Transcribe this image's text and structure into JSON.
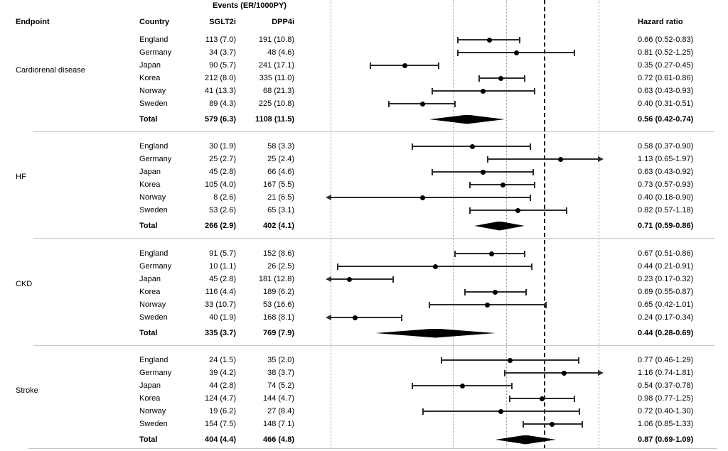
{
  "header": {
    "events_title": "Events (ER/1000PY)",
    "endpoint": "Endpoint",
    "country": "Country",
    "sglt2i": "SGLT2i",
    "dpp4i": "DPP4i",
    "hazard_ratio": "Hazard ratio"
  },
  "colors": {
    "text": "#000000",
    "marker": "#000000",
    "ci_line": "#2b2b2b",
    "gridline": "#9c9c9c",
    "refline": "#1c1c1c",
    "separator": "#c7c7c7",
    "background": "#ffffff"
  },
  "chart_data": {
    "type": "forest",
    "x_scale": "log",
    "ref_line": 1.0,
    "gridlines": [
      0.2,
      0.5,
      0.75,
      1.5
    ],
    "x_clip": [
      0.2,
      1.5
    ],
    "legend_position": "none",
    "sections": [
      {
        "endpoint": "Cardiorenal disease",
        "rows": [
          {
            "country": "England",
            "sglt2i": "113 (7.0)",
            "dpp4i": "191 (10.8)",
            "hr": 0.66,
            "lo": 0.52,
            "hi": 0.83,
            "label": "0.66 (0.52-0.83)"
          },
          {
            "country": "Germany",
            "sglt2i": "34 (3.7)",
            "dpp4i": "48 (4.6)",
            "hr": 0.81,
            "lo": 0.52,
            "hi": 1.25,
            "label": "0.81 (0.52-1.25)"
          },
          {
            "country": "Japan",
            "sglt2i": "90 (5.7)",
            "dpp4i": "241 (17.1)",
            "hr": 0.35,
            "lo": 0.27,
            "hi": 0.45,
            "label": "0.35 (0.27-0.45)"
          },
          {
            "country": "Korea",
            "sglt2i": "212 (8.0)",
            "dpp4i": "335 (11.0)",
            "hr": 0.72,
            "lo": 0.61,
            "hi": 0.86,
            "label": "0.72 (0.61-0.86)"
          },
          {
            "country": "Norway",
            "sglt2i": "41 (13.3)",
            "dpp4i": "68 (21.3)",
            "hr": 0.63,
            "lo": 0.43,
            "hi": 0.93,
            "label": "0.63 (0.43-0.93)"
          },
          {
            "country": "Sweden",
            "sglt2i": "89 (4.3)",
            "dpp4i": "225 (10.8)",
            "hr": 0.4,
            "lo": 0.31,
            "hi": 0.51,
            "label": "0.40 (0.31-0.51)"
          }
        ],
        "total": {
          "country": "Total",
          "sglt2i": "579 (6.3)",
          "dpp4i": "1108 (11.5)",
          "hr": 0.56,
          "lo": 0.42,
          "hi": 0.74,
          "label": "0.56 (0.42-0.74)"
        }
      },
      {
        "endpoint": "HF",
        "rows": [
          {
            "country": "England",
            "sglt2i": "30 (1.9)",
            "dpp4i": "58 (3.3)",
            "hr": 0.58,
            "lo": 0.37,
            "hi": 0.9,
            "label": "0.58 (0.37-0.90)"
          },
          {
            "country": "Germany",
            "sglt2i": "25 (2.7)",
            "dpp4i": "25 (2.4)",
            "hr": 1.13,
            "lo": 0.65,
            "hi": 1.97,
            "label": "1.13 (0.65-1.97)"
          },
          {
            "country": "Japan",
            "sglt2i": "45 (2.8)",
            "dpp4i": "66 (4.6)",
            "hr": 0.63,
            "lo": 0.43,
            "hi": 0.92,
            "label": "0.63 (0.43-0.92)"
          },
          {
            "country": "Korea",
            "sglt2i": "105 (4.0)",
            "dpp4i": "167 (5.5)",
            "hr": 0.73,
            "lo": 0.57,
            "hi": 0.93,
            "label": "0.73 (0.57-0.93)"
          },
          {
            "country": "Norway",
            "sglt2i": "8 (2.6)",
            "dpp4i": "21 (6.5)",
            "hr": 0.4,
            "lo": 0.18,
            "hi": 0.9,
            "label": "0.40 (0.18-0.90)"
          },
          {
            "country": "Sweden",
            "sglt2i": "53 (2.6)",
            "dpp4i": "65 (3.1)",
            "hr": 0.82,
            "lo": 0.57,
            "hi": 1.18,
            "label": "0.82 (0.57-1.18)"
          }
        ],
        "total": {
          "country": "Total",
          "sglt2i": "266 (2.9)",
          "dpp4i": "402 (4.1)",
          "hr": 0.71,
          "lo": 0.59,
          "hi": 0.86,
          "label": "0.71 (0.59-0.86)"
        }
      },
      {
        "endpoint": "CKD",
        "rows": [
          {
            "country": "England",
            "sglt2i": "91 (5.7)",
            "dpp4i": "152 (8.6)",
            "hr": 0.67,
            "lo": 0.51,
            "hi": 0.86,
            "label": "0.67 (0.51-0.86)"
          },
          {
            "country": "Germany",
            "sglt2i": "10 (1.1)",
            "dpp4i": "26 (2.5)",
            "hr": 0.44,
            "lo": 0.21,
            "hi": 0.91,
            "label": "0.44 (0.21-0.91)"
          },
          {
            "country": "Japan",
            "sglt2i": "45 (2.8)",
            "dpp4i": "181 (12.8)",
            "hr": 0.23,
            "lo": 0.17,
            "hi": 0.32,
            "label": "0.23 (0.17-0.32)"
          },
          {
            "country": "Korea",
            "sglt2i": "116 (4.4)",
            "dpp4i": "189 (6.2)",
            "hr": 0.69,
            "lo": 0.55,
            "hi": 0.87,
            "label": "0.69 (0.55-0.87)"
          },
          {
            "country": "Norway",
            "sglt2i": "33 (10.7)",
            "dpp4i": "53 (16.6)",
            "hr": 0.65,
            "lo": 0.42,
            "hi": 1.01,
            "label": "0.65 (0.42-1.01)"
          },
          {
            "country": "Sweden",
            "sglt2i": "40 (1.9)",
            "dpp4i": "168 (8.1)",
            "hr": 0.24,
            "lo": 0.17,
            "hi": 0.34,
            "label": "0.24 (0.17-0.34)"
          }
        ],
        "total": {
          "country": "Total",
          "sglt2i": "335 (3.7)",
          "dpp4i": "769 (7.9)",
          "hr": 0.44,
          "lo": 0.28,
          "hi": 0.69,
          "label": "0.44 (0.28-0.69)"
        }
      },
      {
        "endpoint": "Stroke",
        "rows": [
          {
            "country": "England",
            "sglt2i": "24 (1.5)",
            "dpp4i": "35 (2.0)",
            "hr": 0.77,
            "lo": 0.46,
            "hi": 1.29,
            "label": "0.77 (0.46-1.29)"
          },
          {
            "country": "Germany",
            "sglt2i": "39 (4.2)",
            "dpp4i": "38 (3.7)",
            "hr": 1.16,
            "lo": 0.74,
            "hi": 1.81,
            "label": "1.16 (0.74-1.81)"
          },
          {
            "country": "Japan",
            "sglt2i": "44 (2.8)",
            "dpp4i": "74 (5.2)",
            "hr": 0.54,
            "lo": 0.37,
            "hi": 0.78,
            "label": "0.54 (0.37-0.78)"
          },
          {
            "country": "Korea",
            "sglt2i": "124 (4.7)",
            "dpp4i": "144 (4.7)",
            "hr": 0.98,
            "lo": 0.77,
            "hi": 1.25,
            "label": "0.98 (0.77-1.25)"
          },
          {
            "country": "Norway",
            "sglt2i": "19 (6.2)",
            "dpp4i": "27 (8.4)",
            "hr": 0.72,
            "lo": 0.4,
            "hi": 1.3,
            "label": "0.72 (0.40-1.30)"
          },
          {
            "country": "Sweden",
            "sglt2i": "154 (7.5)",
            "dpp4i": "148 (7.1)",
            "hr": 1.06,
            "lo": 0.85,
            "hi": 1.33,
            "label": "1.06 (0.85-1.33)"
          }
        ],
        "total": {
          "country": "Total",
          "sglt2i": "404 (4.4)",
          "dpp4i": "466 (4.8)",
          "hr": 0.87,
          "lo": 0.69,
          "hi": 1.09,
          "label": "0.87 (0.69-1.09)"
        }
      }
    ]
  }
}
